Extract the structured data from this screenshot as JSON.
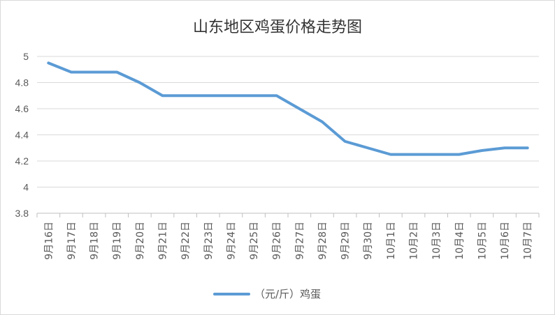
{
  "chart_data": {
    "type": "line",
    "title": "山东地区鸡蛋价格走势图",
    "xlabel": "",
    "ylabel": "",
    "ylim": [
      3.8,
      5
    ],
    "yticks": [
      "3.8",
      "4",
      "4.2",
      "4.4",
      "4.6",
      "4.8",
      "5"
    ],
    "grid": true,
    "legend_position": "bottom",
    "categories": [
      "9月16日",
      "9月17日",
      "9月18日",
      "9月19日",
      "9月20日",
      "9月21日",
      "9月22日",
      "9月23日",
      "9月24日",
      "9月25日",
      "9月26日",
      "9月27日",
      "9月28日",
      "9月29日",
      "9月30日",
      "10月1日",
      "10月2日",
      "10月3日",
      "10月4日",
      "10月5日",
      "10月6日",
      "10月7日"
    ],
    "series": [
      {
        "name": "（元/斤）鸡蛋",
        "color": "#5b9bd5",
        "values": [
          4.95,
          4.88,
          4.88,
          4.88,
          4.8,
          4.7,
          4.7,
          4.7,
          4.7,
          4.7,
          4.7,
          4.6,
          4.5,
          4.35,
          4.3,
          4.25,
          4.25,
          4.25,
          4.25,
          4.28,
          4.3,
          4.3
        ]
      }
    ]
  }
}
